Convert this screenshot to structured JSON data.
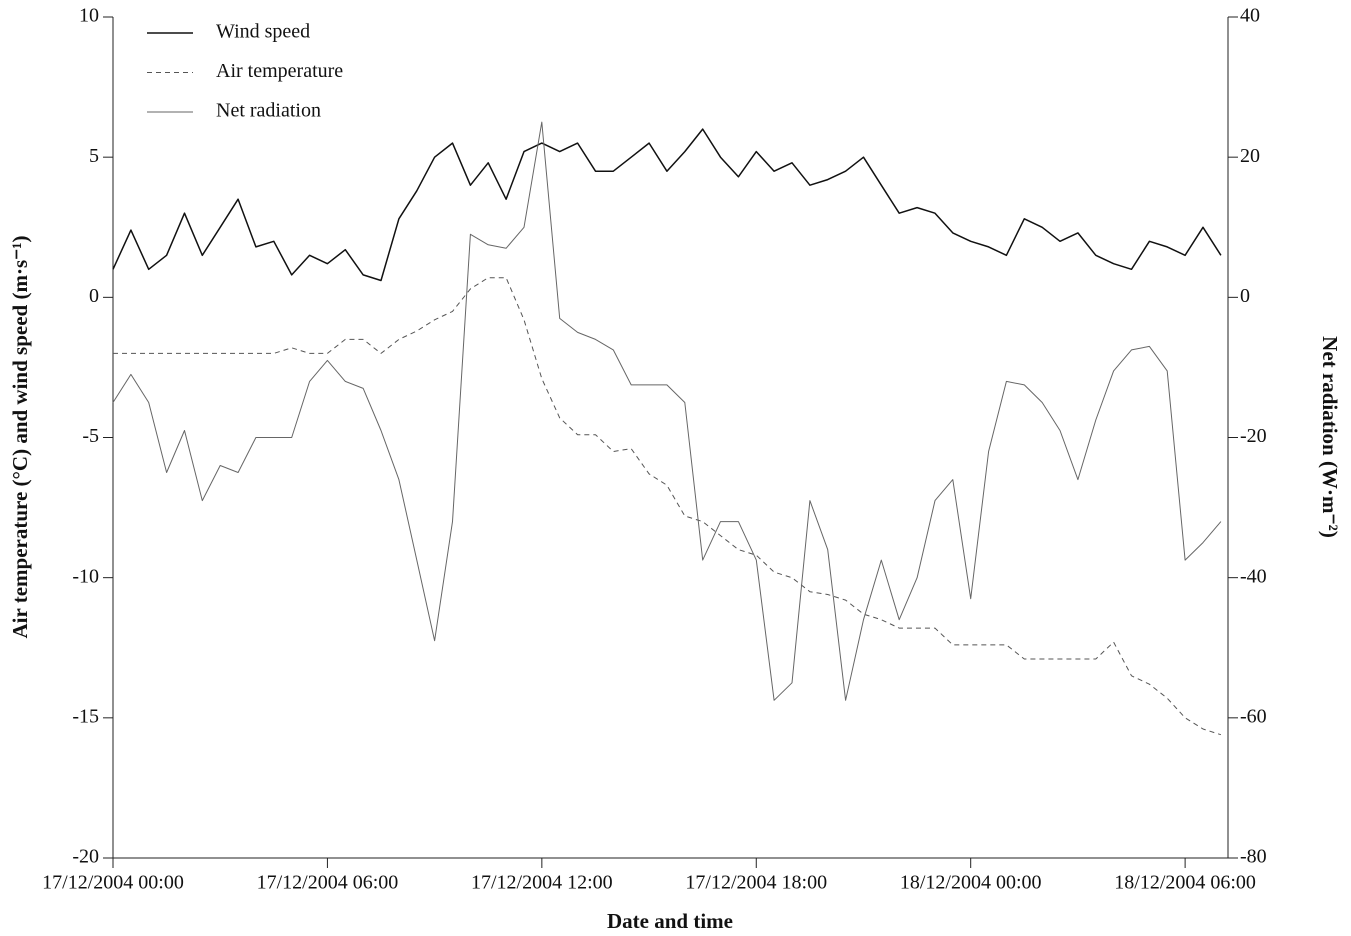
{
  "chart_data": {
    "type": "line",
    "x_label": "Date and time",
    "y_label": "Air temperature (°C) and wind speed (m·s⁻¹)",
    "y2_label": "Net radiation (W·m⁻²)",
    "x": [
      "17/12/2004 00:00",
      "17/12/2004 00:30",
      "17/12/2004 01:00",
      "17/12/2004 01:30",
      "17/12/2004 02:00",
      "17/12/2004 02:30",
      "17/12/2004 03:00",
      "17/12/2004 03:30",
      "17/12/2004 04:00",
      "17/12/2004 04:30",
      "17/12/2004 05:00",
      "17/12/2004 05:30",
      "17/12/2004 06:00",
      "17/12/2004 06:30",
      "17/12/2004 07:00",
      "17/12/2004 07:30",
      "17/12/2004 08:00",
      "17/12/2004 08:30",
      "17/12/2004 09:00",
      "17/12/2004 09:30",
      "17/12/2004 10:00",
      "17/12/2004 10:30",
      "17/12/2004 11:00",
      "17/12/2004 11:30",
      "17/12/2004 12:00",
      "17/12/2004 12:30",
      "17/12/2004 13:00",
      "17/12/2004 13:30",
      "17/12/2004 14:00",
      "17/12/2004 14:30",
      "17/12/2004 15:00",
      "17/12/2004 15:30",
      "17/12/2004 16:00",
      "17/12/2004 16:30",
      "17/12/2004 17:00",
      "17/12/2004 17:30",
      "17/12/2004 18:00",
      "17/12/2004 18:30",
      "17/12/2004 19:00",
      "17/12/2004 19:30",
      "17/12/2004 20:00",
      "17/12/2004 20:30",
      "17/12/2004 21:00",
      "17/12/2004 21:30",
      "17/12/2004 22:00",
      "17/12/2004 22:30",
      "17/12/2004 23:00",
      "17/12/2004 23:30",
      "18/12/2004 00:00",
      "18/12/2004 00:30",
      "18/12/2004 01:00",
      "18/12/2004 01:30",
      "18/12/2004 02:00",
      "18/12/2004 02:30",
      "18/12/2004 03:00",
      "18/12/2004 03:30",
      "18/12/2004 04:00",
      "18/12/2004 04:30",
      "18/12/2004 05:00",
      "18/12/2004 05:30",
      "18/12/2004 06:00",
      "18/12/2004 06:30",
      "18/12/2004 07:00"
    ],
    "series": [
      {
        "name": "Wind speed",
        "color": "#111111",
        "dash": "solid",
        "width": 1.5,
        "values": [
          1.0,
          2.4,
          1.0,
          1.5,
          3.0,
          1.5,
          2.5,
          3.5,
          1.8,
          2.0,
          0.8,
          1.5,
          1.2,
          1.7,
          0.8,
          0.6,
          2.8,
          3.8,
          5.0,
          5.5,
          4.0,
          4.8,
          3.5,
          5.2,
          5.5,
          5.2,
          5.5,
          4.5,
          4.5,
          5.0,
          5.5,
          4.5,
          5.2,
          6.0,
          5.0,
          4.3,
          5.2,
          4.5,
          4.8,
          4.0,
          4.2,
          4.5,
          5.0,
          4.0,
          3.0,
          3.2,
          3.0,
          2.3,
          2.0,
          1.8,
          1.5,
          2.8,
          2.5,
          2.0,
          2.3,
          1.5,
          1.2,
          1.0,
          2.0,
          1.8,
          1.5,
          2.5,
          1.5
        ]
      },
      {
        "name": "Air temperature",
        "color": "#555555",
        "dash": "dashed",
        "width": 1,
        "values": [
          -2,
          -2,
          -2,
          -2,
          -2,
          -2,
          -2,
          -2,
          -2,
          -2,
          -1.8,
          -2,
          -2,
          -1.5,
          -1.5,
          -2,
          -1.5,
          -1.2,
          -0.8,
          -0.5,
          0.3,
          0.7,
          0.7,
          -0.8,
          -2.9,
          -4.3,
          -4.9,
          -4.9,
          -5.5,
          -5.4,
          -6.3,
          -6.7,
          -7.8,
          -8.0,
          -8.5,
          -9.0,
          -9.2,
          -9.8,
          -10.0,
          -10.5,
          -10.6,
          -10.8,
          -11.3,
          -11.5,
          -11.8,
          -11.8,
          -11.8,
          -12.4,
          -12.4,
          -12.4,
          -12.4,
          -12.9,
          -12.9,
          -12.9,
          -12.9,
          -12.9,
          -12.3,
          -13.5,
          -13.8,
          -14.3,
          -15.0,
          -15.4,
          -15.6
        ]
      },
      {
        "name": "Net radiation",
        "color": "#666666",
        "dash": "solid",
        "width": 1,
        "axis": "y2",
        "values": [
          -15,
          -11,
          -15,
          -25,
          -19,
          -29,
          -24,
          -25,
          -20,
          -20,
          -20,
          -12,
          -9,
          -12,
          -13,
          -19,
          -26,
          -37.5,
          -49,
          -32,
          9,
          7.5,
          7,
          10,
          25,
          -3,
          -5,
          -6,
          -7.5,
          -12.5,
          -12.5,
          -12.5,
          -15,
          -37.5,
          -32,
          -32,
          -37.5,
          -57.5,
          -55,
          -29,
          -36,
          -57.5,
          -46,
          -37.5,
          -46,
          -40,
          -29,
          -26,
          -43,
          -22,
          -12,
          -12.5,
          -15,
          -19,
          -26,
          -17.5,
          -10.5,
          -7.5,
          -7,
          -10.5,
          -37.5,
          -35,
          -32
        ]
      }
    ],
    "xlim": [
      "17/12/2004 00:00",
      "18/12/2004 07:12"
    ],
    "xticks": [
      "17/12/2004 00:00",
      "17/12/2004 06:00",
      "17/12/2004 12:00",
      "17/12/2004 18:00",
      "18/12/2004 00:00",
      "18/12/2004 06:00"
    ],
    "ylim": [
      -20,
      10
    ],
    "yticks": [
      -20,
      -15,
      -10,
      -5,
      0,
      5,
      10
    ],
    "y2lim": [
      -80,
      40
    ],
    "y2ticks": [
      -80,
      -60,
      -40,
      -20,
      0,
      20,
      40
    ],
    "legend": "top-left",
    "grid": false
  }
}
